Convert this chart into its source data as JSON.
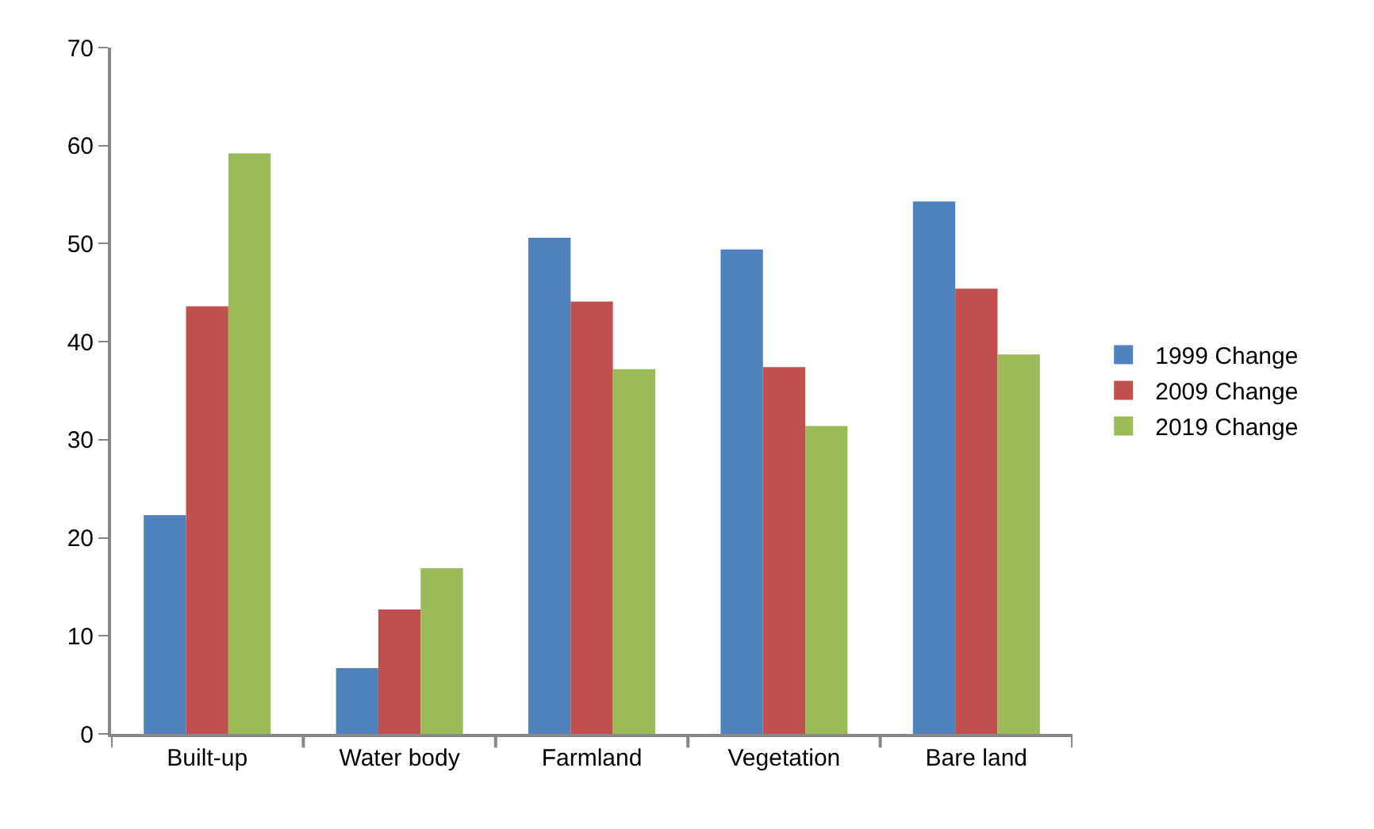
{
  "chart_data": {
    "type": "bar",
    "categories": [
      "Built-up",
      "Water body",
      "Farmland",
      "Vegetation",
      "Bare land"
    ],
    "series": [
      {
        "name": "1999 Change",
        "color": "#4f81bd",
        "values": [
          22.3,
          6.7,
          50.6,
          49.4,
          54.3
        ]
      },
      {
        "name": "2009 Change",
        "color": "#c0504d",
        "values": [
          43.6,
          12.7,
          44.1,
          37.4,
          45.4
        ]
      },
      {
        "name": "2019 Change",
        "color": "#9bbb59",
        "values": [
          59.2,
          16.9,
          37.2,
          31.4,
          38.7
        ]
      }
    ],
    "ylim": [
      0,
      70
    ],
    "yticks": [
      0,
      10,
      20,
      30,
      40,
      50,
      60,
      70
    ],
    "grid": false,
    "legend": "right"
  }
}
